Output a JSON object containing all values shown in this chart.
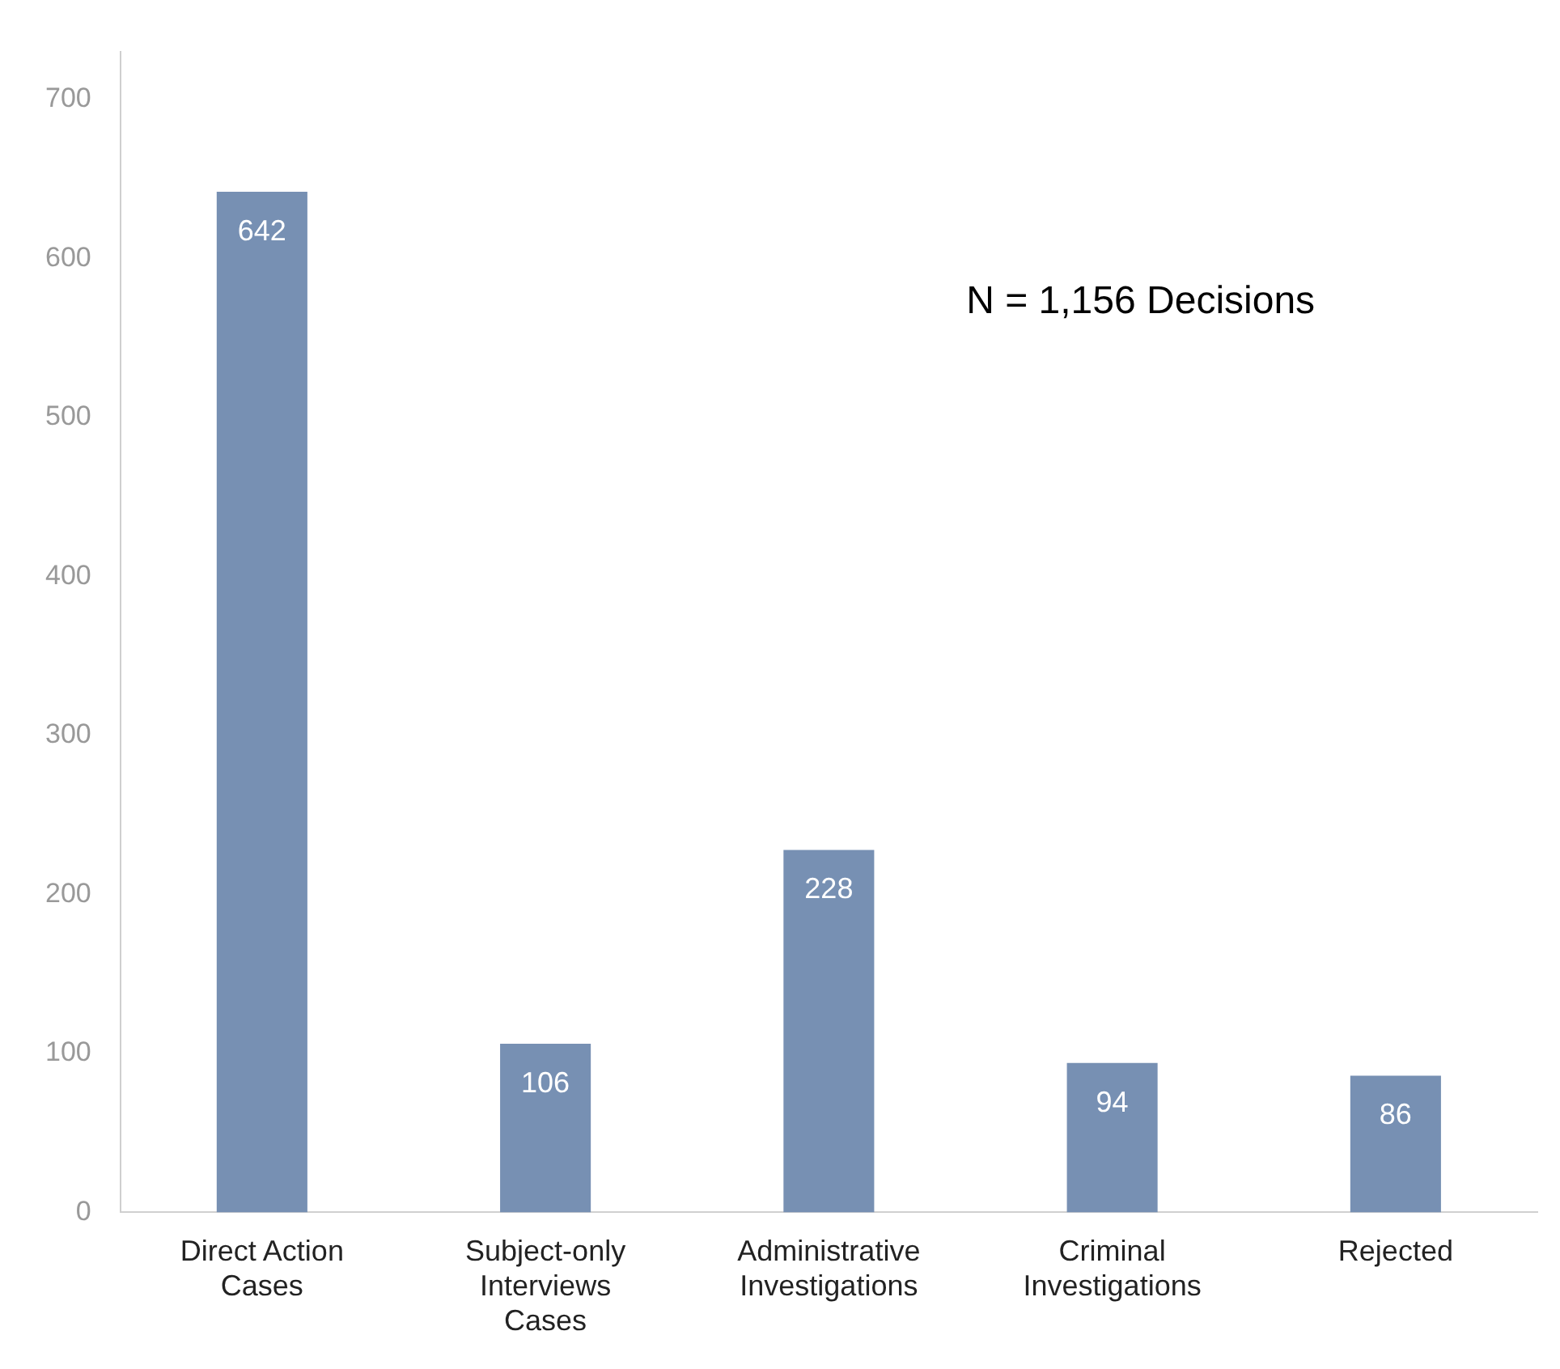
{
  "chart_data": {
    "type": "bar",
    "categories": [
      "Direct Action Cases",
      "Subject-only Interviews Cases",
      "Administrative Investigations",
      "Criminal Investigations",
      "Rejected"
    ],
    "values": [
      642,
      106,
      228,
      94,
      86
    ],
    "color": "#7790b3",
    "ylim": [
      0,
      730
    ],
    "yticks": [
      0,
      100,
      200,
      300,
      400,
      500,
      600,
      700
    ],
    "grid": false,
    "legend": false,
    "data_labels": true,
    "annotations": [
      "N = 1,156 Decisions"
    ]
  }
}
